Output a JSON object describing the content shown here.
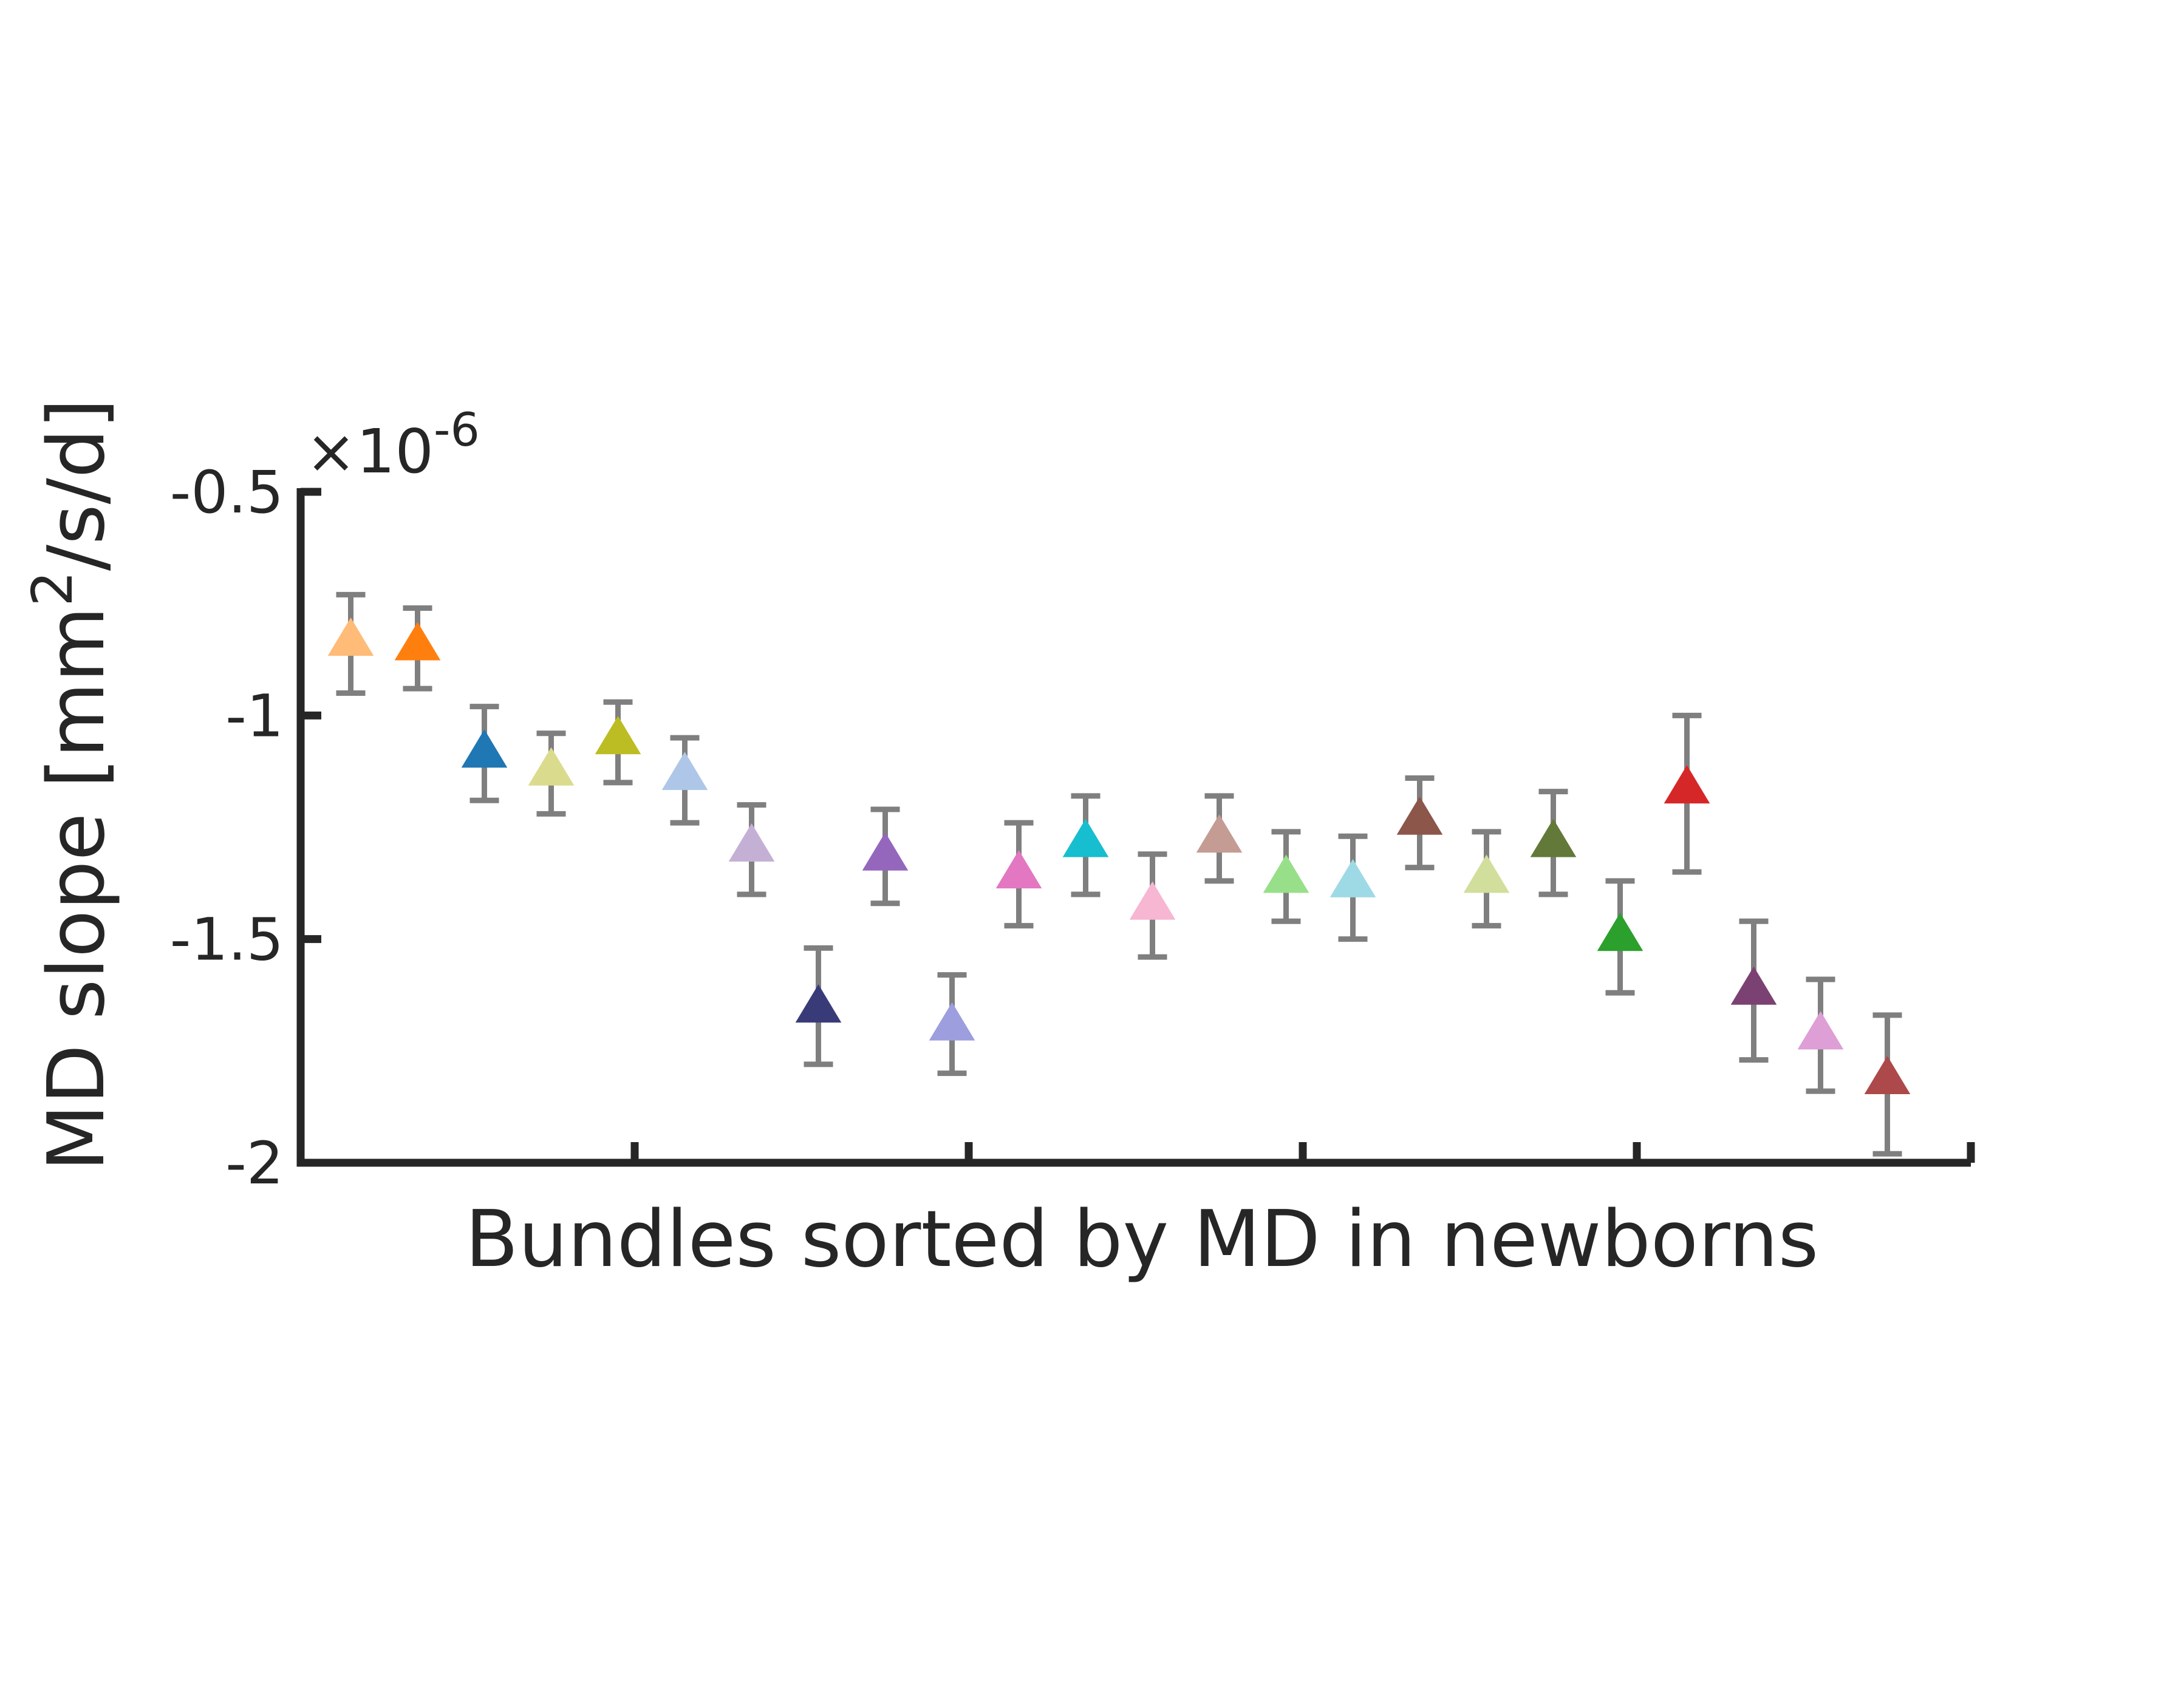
{
  "chart_data": {
    "type": "scatter",
    "marker": "triangle",
    "xlabel": "Bundles sorted by MD in newborns",
    "ylabel": {
      "base": "MD slope [mm",
      "sup": "2",
      "rest": "/s/d]"
    },
    "y_exponent": {
      "base": "×10",
      "sup": "-6"
    },
    "ylim": [
      -2.0,
      -0.5
    ],
    "xlim": [
      0.25,
      25.25
    ],
    "yticks": [
      -2.0,
      -1.5,
      -1.0,
      -0.5
    ],
    "ytick_labels": [
      "-2",
      "-1.5",
      "-1",
      "-0.5"
    ],
    "xticks": [
      5.25,
      10.25,
      15.25,
      20.25
    ],
    "errorbar_color": "#7f7f7f",
    "axis_color": "#262626",
    "grid": false,
    "legend": "none",
    "points": [
      {
        "x": 1,
        "y": -0.83,
        "low": -0.95,
        "high": -0.73,
        "color": "#ffbb78"
      },
      {
        "x": 2,
        "y": -0.84,
        "low": -0.94,
        "high": -0.76,
        "color": "#ff7f0e"
      },
      {
        "x": 3,
        "y": -1.08,
        "low": -1.19,
        "high": -0.98,
        "color": "#1f77b4"
      },
      {
        "x": 4,
        "y": -1.12,
        "low": -1.22,
        "high": -1.04,
        "color": "#dbdb8d"
      },
      {
        "x": 5,
        "y": -1.05,
        "low": -1.15,
        "high": -0.97,
        "color": "#bcbd22"
      },
      {
        "x": 6,
        "y": -1.13,
        "low": -1.24,
        "high": -1.05,
        "color": "#aec7e8"
      },
      {
        "x": 7,
        "y": -1.29,
        "low": -1.4,
        "high": -1.2,
        "color": "#c5b0d5"
      },
      {
        "x": 8,
        "y": -1.65,
        "low": -1.78,
        "high": -1.52,
        "color": "#393b79"
      },
      {
        "x": 9,
        "y": -1.31,
        "low": -1.42,
        "high": -1.21,
        "color": "#9467bd"
      },
      {
        "x": 10,
        "y": -1.69,
        "low": -1.8,
        "high": -1.58,
        "color": "#9c9ede"
      },
      {
        "x": 11,
        "y": -1.35,
        "low": -1.47,
        "high": -1.24,
        "color": "#e377c2"
      },
      {
        "x": 12,
        "y": -1.28,
        "low": -1.4,
        "high": -1.18,
        "color": "#17becf"
      },
      {
        "x": 13,
        "y": -1.42,
        "low": -1.54,
        "high": -1.31,
        "color": "#f7b6d2"
      },
      {
        "x": 14,
        "y": -1.27,
        "low": -1.37,
        "high": -1.18,
        "color": "#c49c94"
      },
      {
        "x": 15,
        "y": -1.36,
        "low": -1.46,
        "high": -1.26,
        "color": "#98df8a"
      },
      {
        "x": 16,
        "y": -1.37,
        "low": -1.5,
        "high": -1.27,
        "color": "#9edae5"
      },
      {
        "x": 17,
        "y": -1.23,
        "low": -1.34,
        "high": -1.14,
        "color": "#8c564b"
      },
      {
        "x": 18,
        "y": -1.36,
        "low": -1.47,
        "high": -1.26,
        "color": "#d1de9c"
      },
      {
        "x": 19,
        "y": -1.28,
        "low": -1.4,
        "high": -1.17,
        "color": "#637939"
      },
      {
        "x": 20,
        "y": -1.49,
        "low": -1.62,
        "high": -1.37,
        "color": "#2ca02c"
      },
      {
        "x": 21,
        "y": -1.16,
        "low": -1.35,
        "high": -1.0,
        "color": "#d62728"
      },
      {
        "x": 22,
        "y": -1.61,
        "low": -1.77,
        "high": -1.46,
        "color": "#7b4173"
      },
      {
        "x": 23,
        "y": -1.71,
        "low": -1.84,
        "high": -1.59,
        "color": "#de9ed6"
      },
      {
        "x": 24,
        "y": -1.81,
        "low": -1.98,
        "high": -1.67,
        "color": "#ad494a"
      }
    ]
  }
}
